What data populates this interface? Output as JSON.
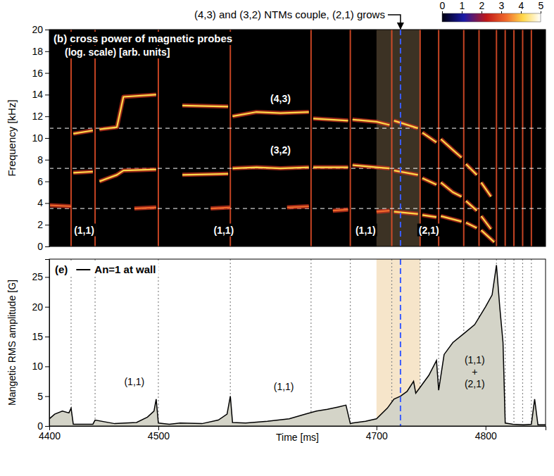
{
  "chart_data": [
    {
      "type": "line",
      "figure_title": "(4,3) and (3,2)  NTMs couple, (2,1) grows",
      "title": "(b) cross power of magnetic probes",
      "subtitle": "(log. scale) [arb. units]",
      "y_label": "Frequency [kHz]",
      "xlim": [
        4400,
        4855
      ],
      "ylim": [
        0,
        20
      ],
      "yticks": [
        0,
        2,
        4,
        6,
        8,
        10,
        12,
        14,
        16,
        18,
        20
      ],
      "tick_labels": "y",
      "colorbar": {
        "range": [
          0,
          5
        ],
        "ticks": [
          0,
          1,
          2,
          3,
          4,
          5
        ]
      },
      "reference_lines": [
        3.5,
        7.2,
        10.9
      ],
      "crash_times": [
        4420,
        4442,
        4500,
        4566,
        4640,
        4676,
        4714,
        4740,
        4757,
        4780,
        4794,
        4810,
        4818,
        4826,
        4834,
        4842
      ],
      "highlight_range": [
        4700,
        4740
      ],
      "marker_time": 4722,
      "series": [
        {
          "color": "#ffd84a",
          "x": [
            4422,
            4440,
            4442,
            4446,
            4462,
            4468,
            4498,
            4500,
            4522,
            4564,
            4566,
            4568,
            4590,
            4612,
            4638,
            4640,
            4642,
            4674,
            4676,
            4678,
            4700,
            4712,
            4714,
            4716,
            4738,
            4740,
            4742,
            4755,
            4757,
            4759,
            4770,
            4778,
            4780,
            4782,
            4792,
            4794,
            4796,
            4805
          ],
          "values": [
            10.4,
            10.7,
            null,
            10.8,
            11.0,
            13.8,
            14.0,
            null,
            13.0,
            12.9,
            null,
            12.0,
            12.4,
            12.3,
            12.4,
            null,
            11.8,
            11.6,
            null,
            11.7,
            11.5,
            11.2,
            null,
            11.6,
            10.9,
            null,
            10.5,
            9.6,
            null,
            9.9,
            8.9,
            8.2,
            null,
            7.6,
            6.6,
            null,
            5.9,
            4.6
          ]
        },
        {
          "color": "#ffd84a",
          "x": [
            4422,
            4440,
            4442,
            4446,
            4462,
            4468,
            4498,
            4500,
            4522,
            4564,
            4566,
            4568,
            4590,
            4612,
            4638,
            4640,
            4642,
            4674,
            4676,
            4678,
            4700,
            4712,
            4714,
            4716,
            4738,
            4740,
            4742,
            4755,
            4757,
            4759,
            4770,
            4778,
            4780,
            4782,
            4792,
            4794,
            4796,
            4805
          ],
          "values": [
            6.8,
            6.9,
            null,
            6.0,
            6.6,
            7.0,
            7.1,
            null,
            6.6,
            6.7,
            null,
            7.2,
            7.3,
            7.2,
            7.3,
            null,
            7.3,
            7.3,
            null,
            7.5,
            7.3,
            7.2,
            null,
            7.0,
            6.6,
            null,
            6.3,
            5.7,
            null,
            5.9,
            5.0,
            4.6,
            null,
            4.2,
            3.3,
            null,
            2.8,
            1.6
          ]
        },
        {
          "color": "#f06a2c",
          "x": [
            4400,
            4420,
            4422,
            4478,
            4498,
            4500,
            4548,
            4566,
            4568,
            4618,
            4638,
            4640,
            4660,
            4674,
            4676,
            4700,
            4712
          ],
          "values": [
            3.8,
            3.7,
            null,
            3.5,
            3.6,
            null,
            3.5,
            3.6,
            null,
            3.6,
            3.7,
            null,
            3.3,
            3.4,
            null,
            3.2,
            3.3
          ]
        },
        {
          "color": "#ffd84a",
          "x": [
            4716,
            4738,
            4740,
            4742,
            4755,
            4757,
            4759,
            4778,
            4780,
            4782,
            4792,
            4794,
            4796,
            4808
          ],
          "values": [
            3.2,
            3.0,
            null,
            2.9,
            2.7,
            null,
            2.8,
            2.3,
            null,
            2.2,
            1.7,
            null,
            1.5,
            0.4
          ]
        }
      ],
      "annotations": [
        {
          "text": "(4,3)",
          "x": 4612,
          "y": 13.3
        },
        {
          "text": "(3,2)",
          "x": 4612,
          "y": 8.6
        },
        {
          "text": "(1,1)",
          "x": 4432,
          "y": 1.2
        },
        {
          "text": "(1,1)",
          "x": 4560,
          "y": 1.2
        },
        {
          "text": "(1,1)",
          "x": 4690,
          "y": 1.2
        },
        {
          "text": "(2,1)",
          "x": 4748,
          "y": 1.2
        }
      ]
    },
    {
      "type": "area",
      "title": "(e)",
      "x_label": "Time [ms]",
      "y_label": "Mangetic RMS amplitude [G]",
      "xlim": [
        4400,
        4855
      ],
      "ylim": [
        0,
        28
      ],
      "xticks": [
        4400,
        4500,
        4700,
        4800
      ],
      "yticks": [
        0,
        5,
        10,
        15,
        20,
        25
      ],
      "legend": "upper left",
      "series": [
        {
          "name": "An=1 at wall",
          "color": "#000000",
          "x": [
            4400,
            4405,
            4412,
            4418,
            4420,
            4422,
            4440,
            4442,
            4460,
            4480,
            4490,
            4496,
            4498,
            4500,
            4510,
            4520,
            4540,
            4555,
            4563,
            4566,
            4568,
            4580,
            4600,
            4620,
            4635,
            4645,
            4655,
            4665,
            4672,
            4676,
            4678,
            4690,
            4700,
            4710,
            4716,
            4722,
            4728,
            4734,
            4736,
            4740,
            4748,
            4755,
            4757,
            4762,
            4770,
            4780,
            4790,
            4800,
            4806,
            4810,
            4813,
            4816,
            4818,
            4825,
            4835,
            4842,
            4845,
            4848,
            4855
          ],
          "values": [
            1.2,
            2.0,
            2.5,
            2.2,
            3.0,
            0.3,
            0.3,
            1.0,
            0.4,
            0.6,
            1.5,
            2.5,
            4.5,
            0.5,
            0.3,
            0.5,
            0.4,
            1.0,
            2.0,
            5.0,
            0.6,
            0.5,
            0.8,
            1.2,
            2.0,
            2.5,
            2.8,
            3.2,
            3.5,
            0.4,
            0.5,
            0.8,
            1.2,
            3.0,
            4.5,
            5.0,
            5.8,
            7.5,
            5.5,
            6.5,
            8.5,
            11.0,
            6.0,
            12.0,
            14.0,
            15.5,
            17.0,
            20.0,
            22.0,
            27.0,
            20.0,
            14.0,
            0.5,
            0.3,
            0.2,
            0.3,
            4.5,
            0.2,
            0.2
          ]
        }
      ],
      "annotations": [
        {
          "text": "(1,1)",
          "x": 4478,
          "y": 6.8
        },
        {
          "text": "(1,1)",
          "x": 4615,
          "y": 6.0
        },
        {
          "text": "(1,1)",
          "x": 4790,
          "y": 10.5
        },
        {
          "text": "+",
          "x": 4790,
          "y": 8.5
        },
        {
          "text": "(2,1)",
          "x": 4790,
          "y": 6.5
        }
      ]
    }
  ]
}
